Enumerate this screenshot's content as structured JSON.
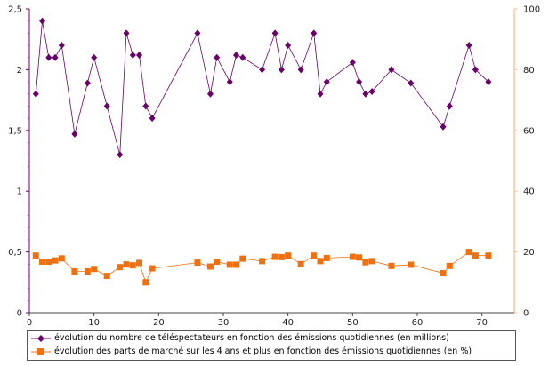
{
  "chart_data": {
    "type": "line",
    "x_range": [
      0,
      75
    ],
    "x_ticks": [
      0,
      10,
      20,
      30,
      40,
      50,
      60,
      70
    ],
    "y_left": {
      "range": [
        0,
        2.5
      ],
      "ticks": [
        "0",
        "0,5",
        "1",
        "1,5",
        "2",
        "2,5"
      ],
      "tick_values": [
        0,
        0.5,
        1,
        1.5,
        2,
        2.5
      ]
    },
    "y_right": {
      "range": [
        0,
        100
      ],
      "ticks": [
        "0",
        "20",
        "40",
        "60",
        "80",
        "100"
      ],
      "tick_values": [
        0,
        20,
        40,
        60,
        80,
        100
      ]
    },
    "grid": false,
    "legend_placement": "bottom",
    "series": [
      {
        "name": "évolution du nombre de téléspectateurs en fonction des émissions quotidiennes (en millions)",
        "axis": "left",
        "color": "#6b006b",
        "marker": "diamond",
        "x": [
          1,
          2,
          3,
          4,
          5,
          7,
          9,
          10,
          12,
          14,
          15,
          16,
          17,
          18,
          19,
          26,
          28,
          29,
          31,
          32,
          33,
          36,
          38,
          39,
          40,
          42,
          44,
          45,
          46,
          50,
          51,
          52,
          53,
          56,
          59,
          64,
          65,
          68,
          69,
          71
        ],
        "y": [
          1.8,
          2.4,
          2.1,
          2.1,
          2.2,
          1.47,
          1.89,
          2.1,
          1.7,
          1.3,
          2.3,
          2.12,
          2.12,
          1.7,
          1.6,
          2.3,
          1.8,
          2.1,
          1.9,
          2.12,
          2.1,
          2.0,
          2.3,
          2.0,
          2.2,
          2.0,
          2.3,
          1.8,
          1.9,
          2.06,
          1.9,
          1.8,
          1.82,
          2.0,
          1.89,
          1.53,
          1.7,
          2.2,
          2.0,
          1.9
        ]
      },
      {
        "name": "évolution des parts de marché sur les 4 ans et plus en fonction des émissions quotidiennes (en %)",
        "axis": "right",
        "color": "#f07010",
        "marker": "square",
        "x": [
          1,
          2,
          3,
          4,
          5,
          7,
          9,
          10,
          12,
          14,
          15,
          16,
          17,
          18,
          19,
          26,
          28,
          29,
          31,
          32,
          33,
          36,
          38,
          39,
          40,
          42,
          44,
          45,
          46,
          50,
          51,
          52,
          53,
          56,
          59,
          64,
          65,
          68,
          69,
          71
        ],
        "y": [
          18.8,
          16.8,
          16.8,
          17.2,
          17.9,
          13.6,
          13.6,
          14.4,
          12.1,
          15.0,
          15.9,
          15.6,
          16.4,
          10.0,
          14.6,
          16.5,
          15.2,
          16.8,
          15.8,
          15.8,
          17.8,
          17.0,
          18.4,
          18.3,
          18.8,
          16.0,
          18.8,
          17.0,
          18.0,
          18.4,
          18.2,
          16.6,
          17.0,
          15.4,
          15.8,
          13.0,
          15.4,
          20.0,
          18.8,
          18.8
        ]
      }
    ]
  }
}
